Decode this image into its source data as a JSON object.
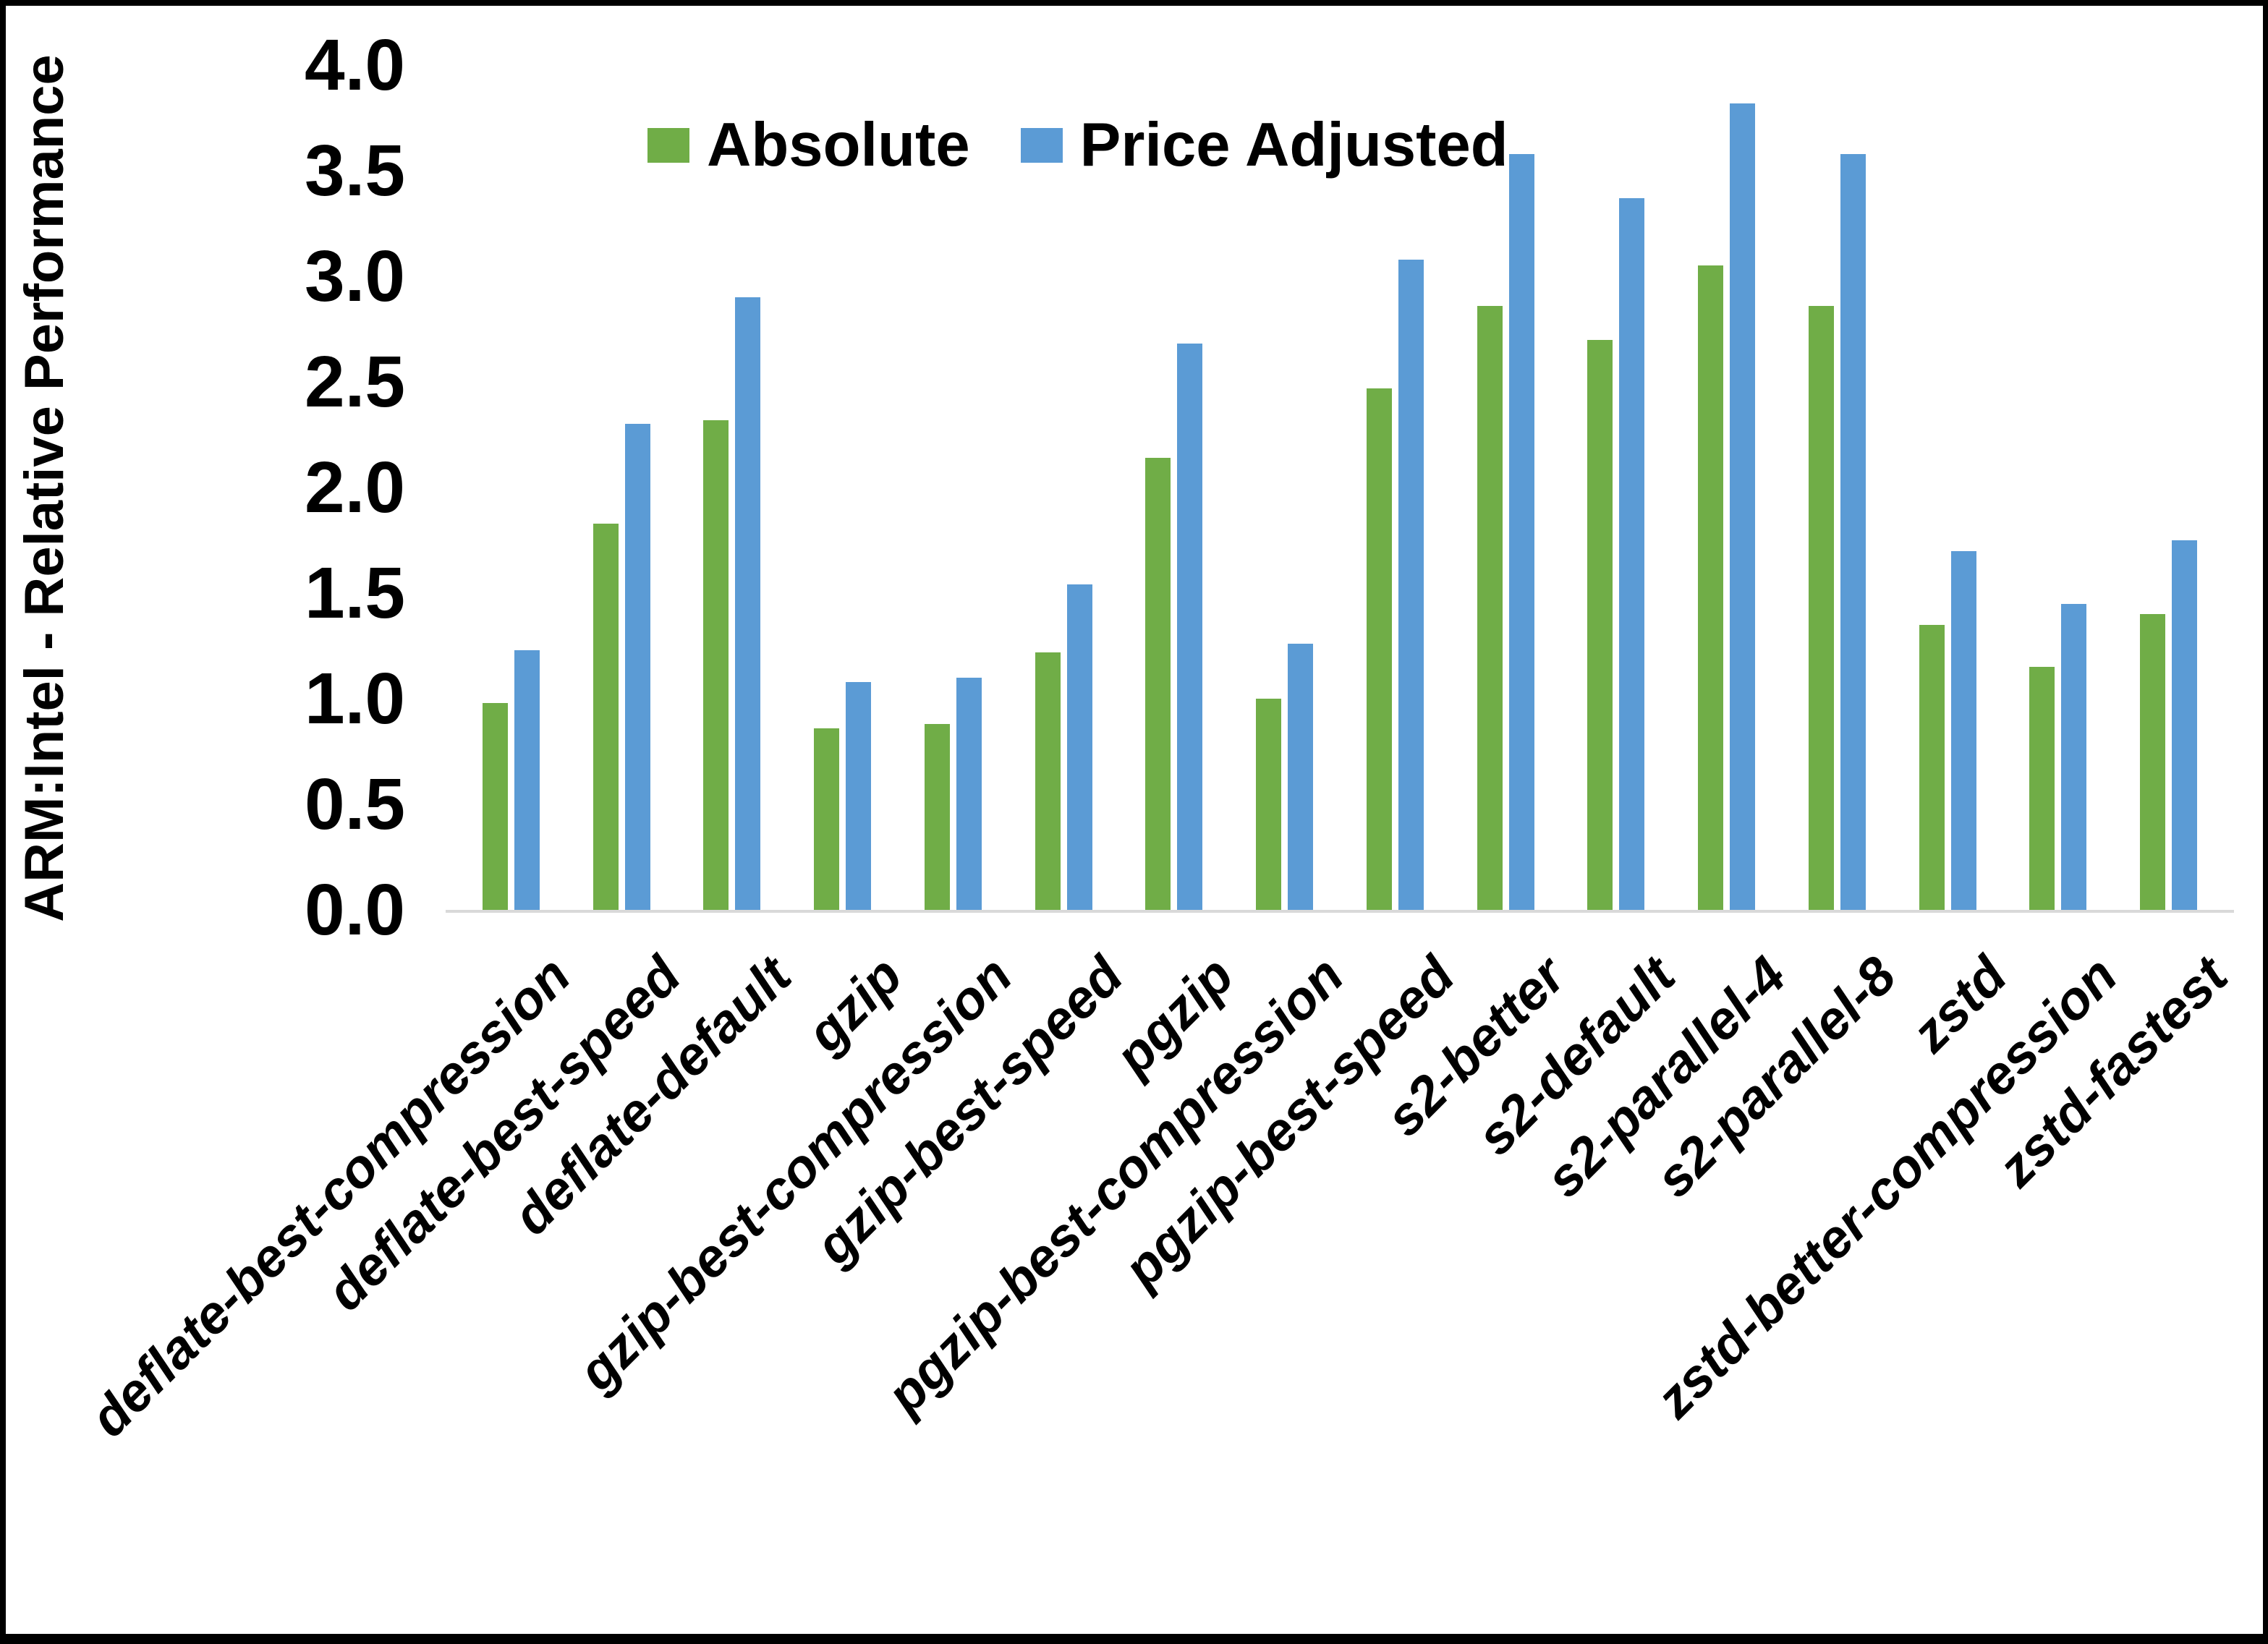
{
  "chart_data": {
    "type": "bar",
    "title": "",
    "ylabel": "ARM:Intel - Relative Performance",
    "xlabel": "",
    "ylim": [
      0.0,
      4.0
    ],
    "ytick_labels": [
      "0.0",
      "0.5",
      "1.0",
      "1.5",
      "2.0",
      "2.5",
      "3.0",
      "3.5",
      "4.0"
    ],
    "grid": "off",
    "legend_position": "top-center",
    "categories": [
      "deflate-best-compression",
      "deflate-best-speed",
      "deflate-default",
      "gzip",
      "gzip-best-compression",
      "gzip-best-speed",
      "pgzip",
      "pgzip-best-compression",
      "pgzip-best-speed",
      "s2-better",
      "s2-default",
      "s2-parallel-4",
      "s2-parallel-8",
      "zstd",
      "zstd-better-compression",
      "zstd-fastest"
    ],
    "series": [
      {
        "name": "Absolute",
        "color": "#70AD47",
        "values": [
          0.98,
          1.83,
          2.32,
          0.86,
          0.88,
          1.22,
          2.14,
          1.0,
          2.47,
          2.86,
          2.7,
          3.05,
          2.86,
          1.35,
          1.15,
          1.4
        ]
      },
      {
        "name": "Price Adjusted",
        "color": "#5B9BD5",
        "values": [
          1.23,
          2.3,
          2.9,
          1.08,
          1.1,
          1.54,
          2.68,
          1.26,
          3.08,
          3.58,
          3.37,
          3.82,
          3.58,
          1.7,
          1.45,
          1.75
        ]
      }
    ],
    "colors": {
      "axis_line": "#d9d9d9",
      "text": "#000000",
      "background": "#ffffff",
      "border": "#000000"
    }
  }
}
